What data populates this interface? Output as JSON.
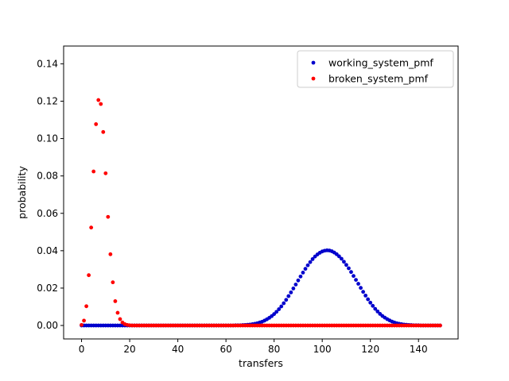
{
  "chart_data": {
    "type": "scatter",
    "title": "",
    "xlabel": "transfers",
    "ylabel": "probability",
    "xlim": [
      -7.45,
      156.45
    ],
    "ylim": [
      -0.0072,
      0.1495
    ],
    "xticks": [
      0,
      20,
      40,
      60,
      80,
      100,
      120,
      140
    ],
    "xtick_labels": [
      "0",
      "20",
      "40",
      "60",
      "80",
      "100",
      "120",
      "140"
    ],
    "yticks": [
      0.0,
      0.02,
      0.04,
      0.06,
      0.08,
      0.1,
      0.12,
      0.14
    ],
    "ytick_labels": [
      "0.00",
      "0.02",
      "0.04",
      "0.06",
      "0.08",
      "0.10",
      "0.12",
      "0.14"
    ],
    "grid": false,
    "legend_position": "top-right",
    "x": [
      0,
      1,
      2,
      3,
      4,
      5,
      6,
      7,
      8,
      9,
      10,
      11,
      12,
      13,
      14,
      15,
      16,
      17,
      18,
      19,
      20,
      21,
      22,
      23,
      24,
      25,
      26,
      27,
      28,
      29,
      30,
      31,
      32,
      33,
      34,
      35,
      36,
      37,
      38,
      39,
      40,
      41,
      42,
      43,
      44,
      45,
      46,
      47,
      48,
      49,
      50,
      51,
      52,
      53,
      54,
      55,
      56,
      57,
      58,
      59,
      60,
      61,
      62,
      63,
      64,
      65,
      66,
      67,
      68,
      69,
      70,
      71,
      72,
      73,
      74,
      75,
      76,
      77,
      78,
      79,
      80,
      81,
      82,
      83,
      84,
      85,
      86,
      87,
      88,
      89,
      90,
      91,
      92,
      93,
      94,
      95,
      96,
      97,
      98,
      99,
      100,
      101,
      102,
      103,
      104,
      105,
      106,
      107,
      108,
      109,
      110,
      111,
      112,
      113,
      114,
      115,
      116,
      117,
      118,
      119,
      120,
      121,
      122,
      123,
      124,
      125,
      126,
      127,
      128,
      129,
      130,
      131,
      132,
      133,
      134,
      135,
      136,
      137,
      138,
      139,
      140,
      141,
      142,
      143,
      144,
      145,
      146,
      147,
      148,
      149
    ],
    "series": [
      {
        "name": "working_system_pmf",
        "color": "#0000cc",
        "values": [
          0,
          0,
          0,
          0,
          0,
          0,
          0,
          0,
          0,
          0,
          0,
          0,
          0,
          0,
          0,
          0,
          0,
          0,
          0,
          0,
          0,
          0,
          0,
          0,
          0,
          0,
          0,
          0,
          0,
          0,
          0,
          0,
          0,
          0,
          0,
          0,
          0,
          0,
          0,
          0,
          0,
          0,
          0,
          0,
          0,
          0,
          0,
          0,
          0,
          0,
          0,
          0,
          0,
          0,
          0,
          0,
          0,
          0,
          0,
          0,
          0,
          0,
          0,
          0,
          0.0001,
          0.0001,
          0.0001,
          0.0002,
          0.0003,
          0.0004,
          0.0005,
          0.0007,
          0.0009,
          0.0012,
          0.0016,
          0.002,
          0.0026,
          0.0033,
          0.0041,
          0.005,
          0.0061,
          0.0073,
          0.0087,
          0.0102,
          0.0119,
          0.0137,
          0.0157,
          0.0177,
          0.0198,
          0.0219,
          0.0241,
          0.0262,
          0.0283,
          0.0303,
          0.0322,
          0.0339,
          0.0355,
          0.0369,
          0.038,
          0.0389,
          0.0396,
          0.04,
          0.0402,
          0.0401,
          0.0397,
          0.039,
          0.0381,
          0.037,
          0.0357,
          0.0341,
          0.0324,
          0.0306,
          0.0286,
          0.0265,
          0.0244,
          0.0223,
          0.0201,
          0.018,
          0.016,
          0.014,
          0.0122,
          0.0105,
          0.0089,
          0.0075,
          0.0062,
          0.0051,
          0.0042,
          0.0034,
          0.0027,
          0.0021,
          0.0016,
          0.0012,
          0.0009,
          0.0007,
          0.0005,
          0.0004,
          0.0003,
          0.0002,
          0.0001,
          0.0001,
          0.0001,
          0,
          0,
          0,
          0,
          0,
          0,
          0,
          0,
          0
        ]
      },
      {
        "name": "broken_system_pmf",
        "color": "#ff0000",
        "values": [
          0.0003,
          0.0026,
          0.0103,
          0.0269,
          0.0524,
          0.0824,
          0.1077,
          0.1206,
          0.1185,
          0.1035,
          0.0814,
          0.0581,
          0.0381,
          0.0231,
          0.013,
          0.0068,
          0.0034,
          0.0016,
          0.0007,
          0.0003,
          0.0001,
          0,
          0,
          0,
          0,
          0,
          0,
          0,
          0,
          0,
          0,
          0,
          0,
          0,
          0,
          0,
          0,
          0,
          0,
          0,
          0,
          0,
          0,
          0,
          0,
          0,
          0,
          0,
          0,
          0,
          0,
          0,
          0,
          0,
          0,
          0,
          0,
          0,
          0,
          0,
          0,
          0,
          0,
          0,
          0,
          0,
          0,
          0,
          0,
          0,
          0,
          0,
          0,
          0,
          0,
          0,
          0,
          0,
          0,
          0,
          0,
          0,
          0,
          0,
          0,
          0,
          0,
          0,
          0,
          0,
          0,
          0,
          0,
          0,
          0,
          0,
          0,
          0,
          0,
          0,
          0,
          0,
          0,
          0,
          0,
          0,
          0,
          0,
          0,
          0,
          0,
          0,
          0,
          0,
          0,
          0,
          0,
          0,
          0,
          0,
          0,
          0,
          0,
          0,
          0,
          0,
          0,
          0,
          0,
          0,
          0,
          0,
          0,
          0,
          0,
          0,
          0,
          0,
          0,
          0,
          0,
          0,
          0,
          0,
          0,
          0,
          0,
          0,
          0,
          0
        ]
      }
    ]
  }
}
